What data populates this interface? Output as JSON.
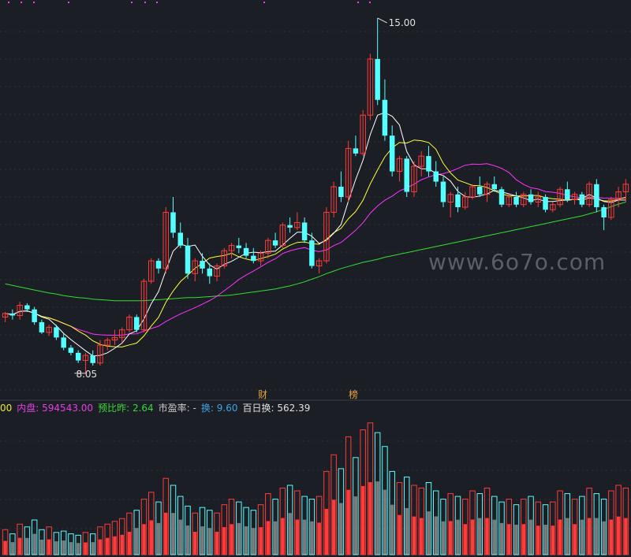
{
  "watermark": "www.6o7o.com",
  "badges": {
    "cai": "财",
    "bang": "榜"
  },
  "info_bar": {
    "prefix": "00",
    "inner_label": "内盘:",
    "inner_value": "594543.00",
    "ratio_label": "预比昨:",
    "ratio_value": "2.64",
    "pe_label": "市盈率:",
    "pe_value": "-",
    "turnover_label": "换:",
    "turnover_value": "9.60",
    "hundred_label": "百日换:",
    "hundred_value": "562.39"
  },
  "chart_data": {
    "type": "candlestick",
    "price_annotations": {
      "high_label": "15.00",
      "high": 15.0,
      "low_label": "8.05",
      "low": 8.05
    },
    "ylim": [
      7.8,
      15.2
    ],
    "candles": [
      [
        9.15,
        9.25,
        9.05,
        9.22
      ],
      [
        9.22,
        9.3,
        9.1,
        9.18
      ],
      [
        9.18,
        9.45,
        9.1,
        9.38
      ],
      [
        9.38,
        9.42,
        9.25,
        9.3
      ],
      [
        9.3,
        9.35,
        9.0,
        9.05
      ],
      [
        9.05,
        9.1,
        8.82,
        8.85
      ],
      [
        8.85,
        9.0,
        8.78,
        8.95
      ],
      [
        8.95,
        9.0,
        8.7,
        8.75
      ],
      [
        8.75,
        8.82,
        8.5,
        8.55
      ],
      [
        8.55,
        8.6,
        8.4,
        8.45
      ],
      [
        8.45,
        8.5,
        8.25,
        8.3
      ],
      [
        8.3,
        8.45,
        8.05,
        8.4
      ],
      [
        8.4,
        8.5,
        8.2,
        8.25
      ],
      [
        8.25,
        8.7,
        8.2,
        8.6
      ],
      [
        8.6,
        8.75,
        8.5,
        8.7
      ],
      [
        8.7,
        8.9,
        8.6,
        8.75
      ],
      [
        8.75,
        8.95,
        8.65,
        8.9
      ],
      [
        8.9,
        9.2,
        8.85,
        9.15
      ],
      [
        9.15,
        9.2,
        8.85,
        8.9
      ],
      [
        8.9,
        9.9,
        8.85,
        9.85
      ],
      [
        9.85,
        10.3,
        9.8,
        10.25
      ],
      [
        10.25,
        10.3,
        10.0,
        10.1
      ],
      [
        10.1,
        11.3,
        10.0,
        11.2
      ],
      [
        11.2,
        11.5,
        10.7,
        10.8
      ],
      [
        10.8,
        11.0,
        10.5,
        10.55
      ],
      [
        10.55,
        10.7,
        9.9,
        10.0
      ],
      [
        10.0,
        10.3,
        9.85,
        10.25
      ],
      [
        10.25,
        10.4,
        10.0,
        10.1
      ],
      [
        10.1,
        10.2,
        9.8,
        9.95
      ],
      [
        9.95,
        10.2,
        9.85,
        10.15
      ],
      [
        10.15,
        10.5,
        10.1,
        10.45
      ],
      [
        10.45,
        10.6,
        10.3,
        10.55
      ],
      [
        10.55,
        10.7,
        10.4,
        10.5
      ],
      [
        10.5,
        10.6,
        10.3,
        10.35
      ],
      [
        10.35,
        10.5,
        10.2,
        10.25
      ],
      [
        10.25,
        10.45,
        10.15,
        10.4
      ],
      [
        10.4,
        10.7,
        10.3,
        10.65
      ],
      [
        10.65,
        10.8,
        10.5,
        10.55
      ],
      [
        10.55,
        11.0,
        10.5,
        10.95
      ],
      [
        10.95,
        11.1,
        10.8,
        10.9
      ],
      [
        10.9,
        11.2,
        10.85,
        11.0
      ],
      [
        11.0,
        11.1,
        10.6,
        10.65
      ],
      [
        10.65,
        10.8,
        10.1,
        10.15
      ],
      [
        10.15,
        10.3,
        10.0,
        10.25
      ],
      [
        10.25,
        11.3,
        10.2,
        11.2
      ],
      [
        11.2,
        11.8,
        11.1,
        11.7
      ],
      [
        11.7,
        12.0,
        11.4,
        11.5
      ],
      [
        11.5,
        12.6,
        11.4,
        12.45
      ],
      [
        12.45,
        12.7,
        12.3,
        12.35
      ],
      [
        12.35,
        13.2,
        12.3,
        13.1
      ],
      [
        13.1,
        14.3,
        13.0,
        14.2
      ],
      [
        14.2,
        15.0,
        13.3,
        13.4
      ],
      [
        13.4,
        13.8,
        12.6,
        12.7
      ],
      [
        12.7,
        12.9,
        11.9,
        12.0
      ],
      [
        12.0,
        12.3,
        11.8,
        12.25
      ],
      [
        12.25,
        12.3,
        11.5,
        11.6
      ],
      [
        11.6,
        12.2,
        11.5,
        12.1
      ],
      [
        12.1,
        12.4,
        11.9,
        12.3
      ],
      [
        12.3,
        12.5,
        11.9,
        12.0
      ],
      [
        12.0,
        12.2,
        11.7,
        11.8
      ],
      [
        11.8,
        11.9,
        11.3,
        11.4
      ],
      [
        11.4,
        11.6,
        11.1,
        11.55
      ],
      [
        11.55,
        11.7,
        11.2,
        11.3
      ],
      [
        11.3,
        11.6,
        11.25,
        11.5
      ],
      [
        11.5,
        11.75,
        11.45,
        11.7
      ],
      [
        11.7,
        11.9,
        11.5,
        11.55
      ],
      [
        11.55,
        11.8,
        11.4,
        11.75
      ],
      [
        11.75,
        11.9,
        11.6,
        11.65
      ],
      [
        11.65,
        11.7,
        11.3,
        11.35
      ],
      [
        11.35,
        11.55,
        11.3,
        11.5
      ],
      [
        11.5,
        11.6,
        11.3,
        11.35
      ],
      [
        11.35,
        11.6,
        11.3,
        11.55
      ],
      [
        11.55,
        11.65,
        11.35,
        11.4
      ],
      [
        11.4,
        11.6,
        11.3,
        11.5
      ],
      [
        11.5,
        11.55,
        11.2,
        11.25
      ],
      [
        11.25,
        11.4,
        11.2,
        11.35
      ],
      [
        11.35,
        11.7,
        11.3,
        11.65
      ],
      [
        11.65,
        11.8,
        11.4,
        11.45
      ],
      [
        11.45,
        11.6,
        11.35,
        11.55
      ],
      [
        11.55,
        11.6,
        11.3,
        11.35
      ],
      [
        11.35,
        11.8,
        11.3,
        11.75
      ],
      [
        11.75,
        11.85,
        11.2,
        11.3
      ],
      [
        11.3,
        11.35,
        10.85,
        11.1
      ],
      [
        11.1,
        11.5,
        11.05,
        11.45
      ],
      [
        11.45,
        11.7,
        11.3,
        11.6
      ],
      [
        11.6,
        11.85,
        11.4,
        11.75
      ]
    ],
    "ma_colors": {
      "ma5": "#ffffff",
      "ma10": "#ffff33",
      "ma20": "#ff33ff",
      "ma60": "#33dd33"
    },
    "ma60": [
      9.8,
      9.77,
      9.74,
      9.71,
      9.68,
      9.65,
      9.62,
      9.6,
      9.57,
      9.55,
      9.53,
      9.52,
      9.5,
      9.49,
      9.48,
      9.47,
      9.47,
      9.47,
      9.47,
      9.47,
      9.48,
      9.49,
      9.5,
      9.51,
      9.52,
      9.53,
      9.53,
      9.54,
      9.55,
      9.56,
      9.57,
      9.58,
      9.6,
      9.62,
      9.64,
      9.66,
      9.68,
      9.7,
      9.73,
      9.76,
      9.8,
      9.84,
      9.89,
      9.94,
      10.0,
      10.05,
      10.1,
      10.14,
      10.18,
      10.22,
      10.25,
      10.28,
      10.32,
      10.35,
      10.38,
      10.41,
      10.44,
      10.47,
      10.5,
      10.53,
      10.56,
      10.59,
      10.62,
      10.65,
      10.68,
      10.71,
      10.74,
      10.77,
      10.8,
      10.83,
      10.86,
      10.89,
      10.92,
      10.95,
      10.98,
      11.01,
      11.04,
      11.07,
      11.1,
      11.13,
      11.17,
      11.21,
      11.26,
      11.31,
      11.36,
      11.4
    ],
    "volume": [
      18,
      15,
      22,
      20,
      25,
      18,
      20,
      16,
      17,
      15,
      14,
      16,
      15,
      20,
      22,
      24,
      26,
      30,
      32,
      40,
      45,
      38,
      55,
      50,
      42,
      35,
      30,
      34,
      32,
      30,
      36,
      40,
      38,
      34,
      32,
      36,
      44,
      40,
      48,
      50,
      46,
      42,
      40,
      42,
      60,
      72,
      62,
      85,
      70,
      90,
      95,
      88,
      78,
      60,
      52,
      56,
      50,
      48,
      52,
      46,
      40,
      44,
      42,
      40,
      46,
      44,
      48,
      42,
      38,
      40,
      36,
      40,
      42,
      38,
      36,
      38,
      46,
      44,
      40,
      42,
      48,
      44,
      40,
      46,
      50,
      48
    ],
    "volume_ylim": [
      0,
      100
    ]
  }
}
